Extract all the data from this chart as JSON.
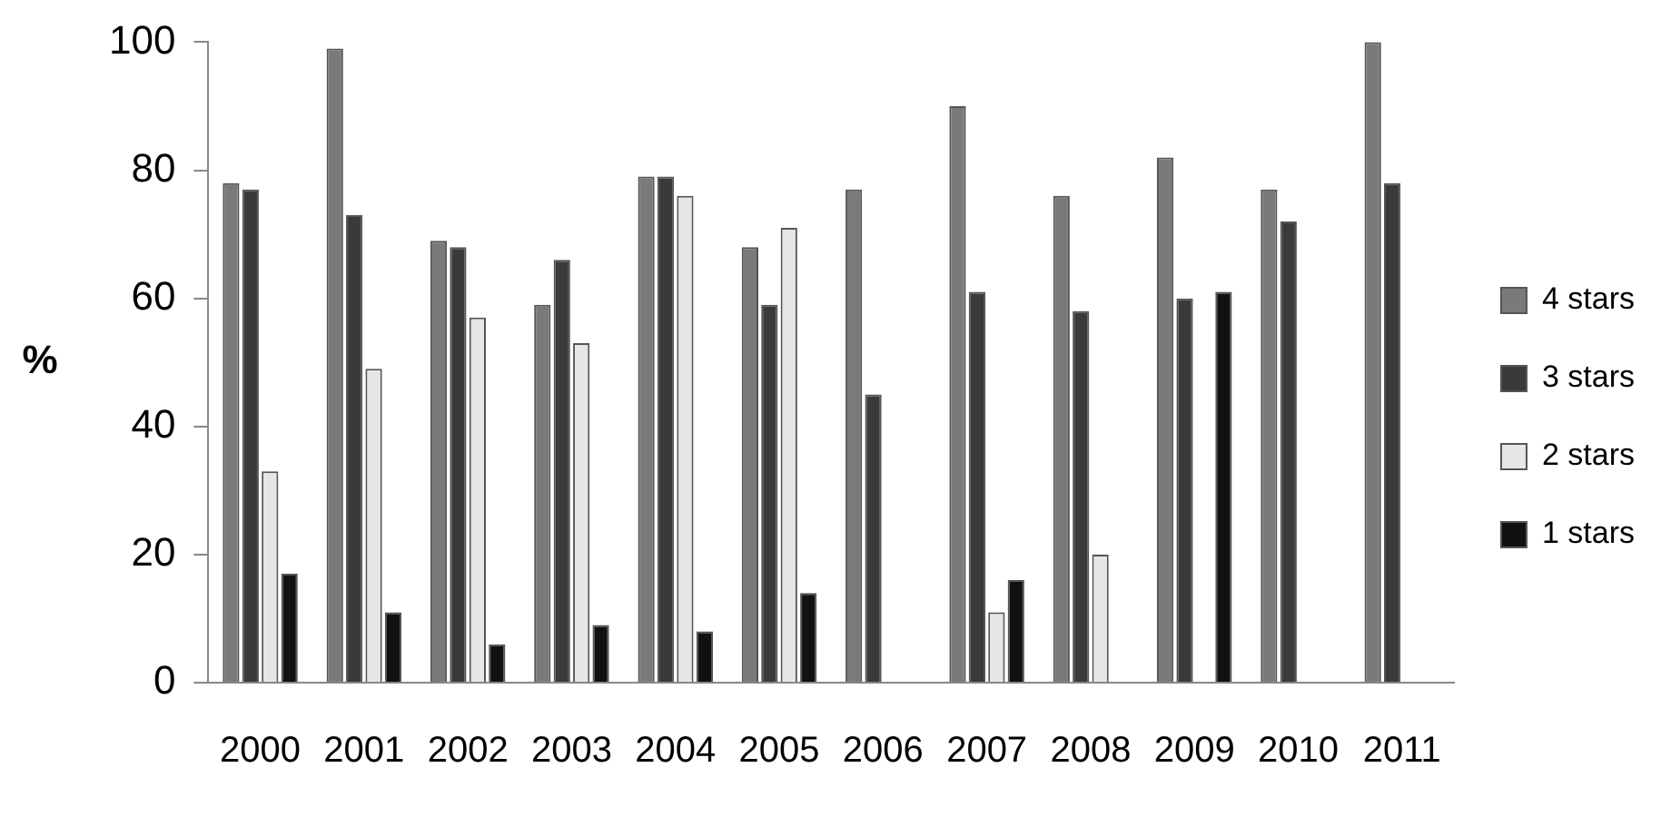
{
  "chart_data": {
    "type": "bar",
    "ylabel": "%",
    "categories": [
      "2000",
      "2001",
      "2002",
      "2003",
      "2004",
      "2005",
      "2006",
      "2007",
      "2008",
      "2009",
      "2010",
      "2011"
    ],
    "series": [
      {
        "name": "4 stars",
        "color": "#7a7a7a",
        "values": [
          78,
          99,
          69,
          59,
          79,
          68,
          77,
          90,
          76,
          82,
          77,
          100
        ]
      },
      {
        "name": "3 stars",
        "color": "#3a3a3a",
        "values": [
          77,
          73,
          68,
          66,
          79,
          59,
          45,
          61,
          58,
          60,
          72,
          78
        ]
      },
      {
        "name": "2 stars",
        "color": "#e6e6e6",
        "values": [
          33,
          49,
          57,
          53,
          76,
          71,
          0,
          11,
          20,
          0,
          0,
          0
        ]
      },
      {
        "name": "1 stars",
        "color": "#111111",
        "values": [
          17,
          11,
          6,
          9,
          8,
          14,
          0,
          16,
          0,
          61,
          0,
          0
        ]
      }
    ],
    "ylim": [
      0,
      100
    ],
    "yticks": [
      0,
      20,
      40,
      60,
      80,
      100
    ],
    "grid": false,
    "legend": "right"
  }
}
